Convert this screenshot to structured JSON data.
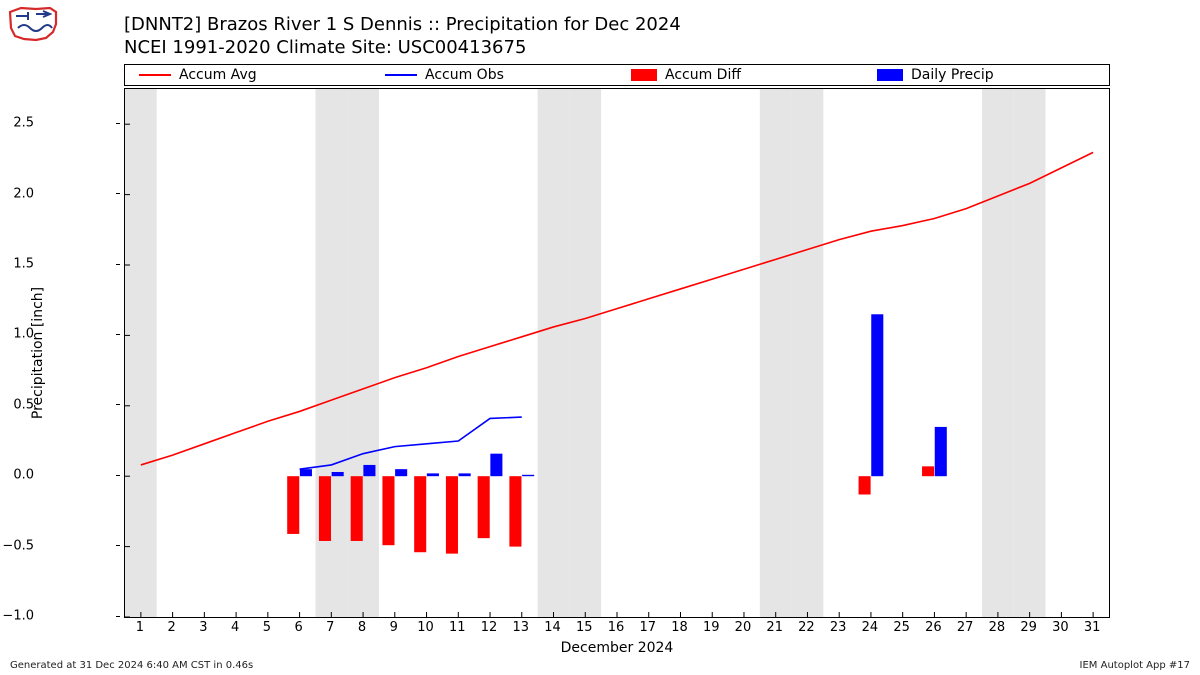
{
  "chart": {
    "type": "combo-bar-line",
    "title_line1": "[DNNT2] Brazos River 1 S Dennis :: Precipitation for Dec 2024",
    "title_line2": "NCEI 1991-2020 Climate Site: USC00413675",
    "title_fontsize": 18,
    "xlabel": "December 2024",
    "ylabel": "Precipitation [inch]",
    "label_fontsize": 14,
    "background_color": "#ffffff",
    "plot_border_color": "#000000",
    "weekend_band_color": "#e5e5e5",
    "legend": {
      "entries": [
        {
          "label": "Accum Avg",
          "kind": "line",
          "color": "#ff0000"
        },
        {
          "label": "Accum Obs",
          "kind": "line",
          "color": "#0000ff"
        },
        {
          "label": "Accum Diff",
          "kind": "rect",
          "color": "#ff0000"
        },
        {
          "label": "Daily Precip",
          "kind": "rect",
          "color": "#0000ff"
        }
      ]
    },
    "xaxis": {
      "min": 0.5,
      "max": 31.5,
      "ticks": [
        1,
        2,
        3,
        4,
        5,
        6,
        7,
        8,
        9,
        10,
        11,
        12,
        13,
        14,
        15,
        16,
        17,
        18,
        19,
        20,
        21,
        22,
        23,
        24,
        25,
        26,
        27,
        28,
        29,
        30,
        31
      ]
    },
    "yaxis": {
      "min": -1.0,
      "max": 2.75,
      "ticks": [
        -1.0,
        -0.5,
        0.0,
        0.5,
        1.0,
        1.5,
        2.0,
        2.5
      ],
      "tick_labels": [
        "−1.0",
        "−0.5",
        "0.0",
        "0.5",
        "1.0",
        "1.5",
        "2.0",
        "2.5"
      ]
    },
    "weekend_days": [
      1,
      7,
      8,
      14,
      15,
      21,
      22,
      28,
      29
    ],
    "series": {
      "accum_avg": {
        "color": "#ff0000",
        "linewidth": 1.6,
        "x": [
          1,
          2,
          3,
          4,
          5,
          6,
          7,
          8,
          9,
          10,
          11,
          12,
          13,
          14,
          15,
          16,
          17,
          18,
          19,
          20,
          21,
          22,
          23,
          24,
          25,
          26,
          27,
          28,
          29,
          30,
          31
        ],
        "y": [
          0.08,
          0.15,
          0.23,
          0.31,
          0.39,
          0.46,
          0.54,
          0.62,
          0.7,
          0.77,
          0.85,
          0.92,
          0.99,
          1.06,
          1.12,
          1.19,
          1.26,
          1.33,
          1.4,
          1.47,
          1.54,
          1.61,
          1.68,
          1.74,
          1.78,
          1.83,
          1.9,
          1.99,
          2.08,
          2.19,
          2.3
        ]
      },
      "accum_obs": {
        "color": "#0000ff",
        "linewidth": 1.6,
        "x": [
          6,
          7,
          8,
          9,
          10,
          11,
          12,
          13
        ],
        "y": [
          0.05,
          0.08,
          0.16,
          0.21,
          0.23,
          0.25,
          0.41,
          0.42
        ]
      },
      "accum_diff_bars": {
        "color": "#ff0000",
        "width": 0.38,
        "offset": -0.2,
        "x": [
          6,
          7,
          8,
          9,
          10,
          11,
          12,
          13,
          24,
          26
        ],
        "y": [
          -0.41,
          -0.46,
          -0.46,
          -0.49,
          -0.54,
          -0.55,
          -0.44,
          -0.5,
          -0.13,
          0.07
        ]
      },
      "daily_precip_bars": {
        "color": "#0000ff",
        "width": 0.38,
        "offset": 0.2,
        "x": [
          6,
          7,
          8,
          9,
          10,
          11,
          12,
          13,
          24,
          26
        ],
        "y": [
          0.05,
          0.03,
          0.08,
          0.05,
          0.02,
          0.02,
          0.16,
          0.01,
          1.15,
          0.35
        ]
      }
    }
  },
  "footer": {
    "left": "Generated at 31 Dec 2024 6:40 AM CST in 0.46s",
    "right": "IEM Autoplot App #17"
  },
  "logo": {
    "state_fill": "#ffffff",
    "outline": "#d62a2a",
    "features": "#223a8a"
  }
}
